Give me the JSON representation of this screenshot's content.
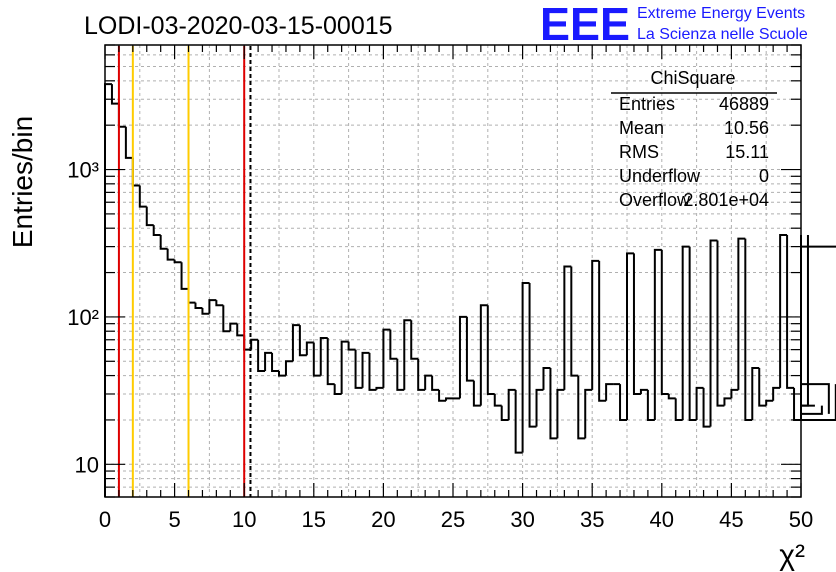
{
  "title": "LODI-03-2020-03-15-00015",
  "logo": {
    "text": "EEE",
    "line1": "Extreme Energy Events",
    "line2": "La Scienza nelle Scuole",
    "color": "#1a1aff"
  },
  "stats": {
    "name": "ChiSquare",
    "rows": [
      {
        "label": "Entries",
        "value": "46889"
      },
      {
        "label": "Mean",
        "value": "10.56"
      },
      {
        "label": "RMS",
        "value": "15.11"
      },
      {
        "label": "Underflow",
        "value": "0"
      },
      {
        "label": "Overflow",
        "value": "2.801e+04"
      }
    ]
  },
  "chart_data": {
    "type": "histogram",
    "title": "LODI-03-2020-03-15-00015",
    "xlabel": "χ²",
    "ylabel": "Entries/bin",
    "xlim": [
      0,
      50
    ],
    "ylim": [
      6,
      7000
    ],
    "yscale": "log",
    "grid": true,
    "bin_width": 0.5,
    "x_ticks": [
      "0",
      "5",
      "10",
      "15",
      "20",
      "25",
      "30",
      "35",
      "40",
      "45",
      "50"
    ],
    "y_ticks": [
      {
        "value": 10,
        "label": "10"
      },
      {
        "value": 100,
        "label": "10²"
      },
      {
        "value": 1000,
        "label": "10³"
      }
    ],
    "counts": [
      3800,
      2800,
      1950,
      1200,
      780,
      560,
      420,
      360,
      290,
      245,
      235,
      155,
      125,
      115,
      105,
      130,
      120,
      80,
      90,
      75,
      60,
      70,
      43,
      57,
      43,
      40,
      50,
      88,
      55,
      67,
      40,
      72,
      35,
      30,
      68,
      60,
      33,
      57,
      32,
      33,
      82,
      52,
      32,
      95,
      52,
      32,
      40,
      32,
      27,
      28,
      28,
      100,
      37,
      25,
      120,
      30,
      25,
      20,
      32,
      12,
      170,
      18,
      32,
      45,
      15,
      32,
      220,
      40,
      15,
      32,
      240,
      27,
      35,
      35,
      20,
      270,
      30,
      32,
      20,
      285,
      30,
      28,
      20,
      300,
      20,
      33,
      18,
      330,
      25,
      28,
      32,
      340,
      20,
      45,
      25,
      27,
      33,
      360,
      33,
      20,
      360,
      25,
      25,
      22,
      35,
      20,
      300
    ],
    "vlines": [
      {
        "x": 1.0,
        "color": "#dd0000",
        "style": "solid"
      },
      {
        "x": 2.0,
        "color": "#ffcc00",
        "style": "solid"
      },
      {
        "x": 6.0,
        "color": "#ffcc00",
        "style": "solid"
      },
      {
        "x": 10.0,
        "color": "#dd0000",
        "style": "solid"
      },
      {
        "x": 10.45,
        "color": "#000000",
        "style": "dashed"
      }
    ]
  }
}
